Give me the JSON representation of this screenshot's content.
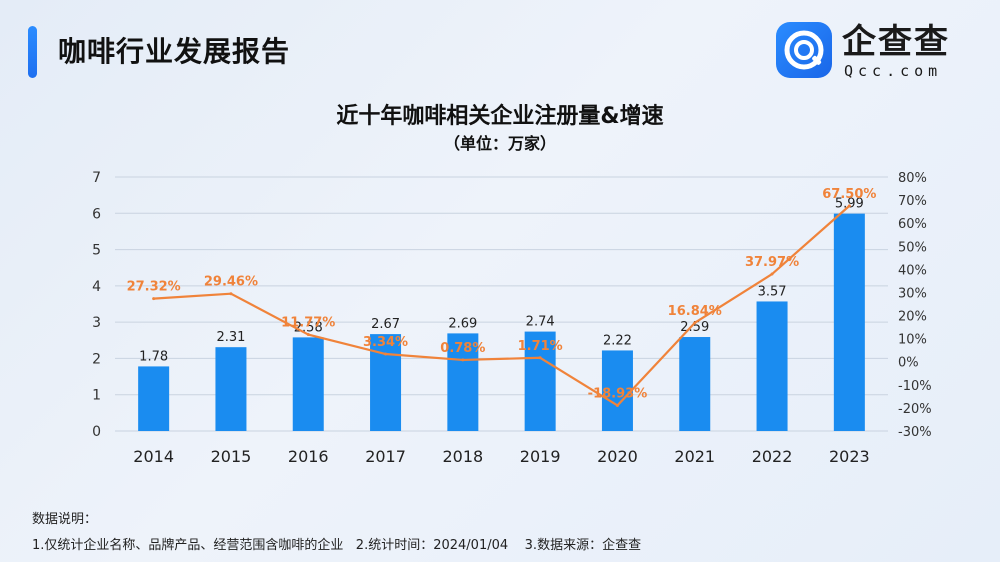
{
  "header": {
    "title": "咖啡行业发展报告"
  },
  "logo": {
    "name": "企查查",
    "sub": "Qcc.com",
    "mark_icon": "qcc-logo-icon"
  },
  "chart_data": {
    "type": "bar+line",
    "title": "近十年咖啡相关企业注册量&增速",
    "subtitle": "（单位：万家）",
    "categories": [
      "2014",
      "2015",
      "2016",
      "2017",
      "2018",
      "2019",
      "2020",
      "2021",
      "2022",
      "2023"
    ],
    "series": [
      {
        "type": "bar",
        "axis": "left",
        "values": [
          1.78,
          2.31,
          2.58,
          2.67,
          2.69,
          2.74,
          2.22,
          2.59,
          3.57,
          5.99
        ],
        "labels": [
          "1.78",
          "2.31",
          "2.58",
          "2.67",
          "2.69",
          "2.74",
          "2.22",
          "2.59",
          "3.57",
          "5.99"
        ],
        "color": "#1a8cf0"
      },
      {
        "type": "line",
        "axis": "right",
        "values": [
          27.32,
          29.46,
          11.77,
          3.34,
          0.78,
          1.71,
          -18.93,
          16.84,
          37.97,
          67.5
        ],
        "labels": [
          "27.32%",
          "29.46%",
          "11.77%",
          "3.34%",
          "0.78%",
          "1.71%",
          "-18.93%",
          "16.84%",
          "37.97%",
          "67.50%"
        ],
        "color": "#f0833a"
      }
    ],
    "y_left": {
      "min": 0,
      "max": 7,
      "ticks": [
        "0",
        "1",
        "2",
        "3",
        "4",
        "5",
        "6",
        "7"
      ]
    },
    "y_right": {
      "min": -30,
      "max": 80,
      "ticks": [
        "-30%",
        "-20%",
        "-10%",
        "0%",
        "10%",
        "20%",
        "30%",
        "40%",
        "50%",
        "60%",
        "70%",
        "80%"
      ]
    },
    "grid": true
  },
  "notes": {
    "heading": "数据说明：",
    "line": "1.仅统计企业名称、品牌产品、经营范围含咖啡的企业   2.统计时间：2024/01/04    3.数据来源：企查查"
  }
}
